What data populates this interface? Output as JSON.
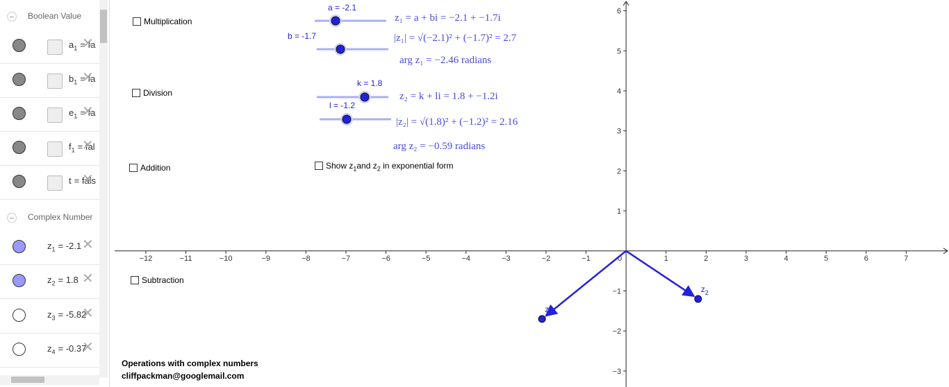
{
  "algebra_view": {
    "groups": [
      {
        "title": "Boolean Value",
        "items": [
          {
            "name": "a",
            "sub": "1",
            "value": "= fa"
          },
          {
            "name": "b",
            "sub": "1",
            "value": "= fa"
          },
          {
            "name": "e",
            "sub": "1",
            "value": "= fa"
          },
          {
            "name": "f",
            "sub": "1",
            "value": "= fal"
          },
          {
            "name": "t",
            "value": "= fals"
          }
        ]
      },
      {
        "title": "Complex Number",
        "items": [
          {
            "name": "z",
            "sub": "1",
            "value": "= -2.1",
            "color": "#9999ff"
          },
          {
            "name": "z",
            "sub": "2",
            "value": "= 1.8",
            "color": "#9999ff"
          },
          {
            "name": "z",
            "sub": "3",
            "value": "= -5.82",
            "color": "#ffffff"
          },
          {
            "name": "z",
            "sub": "4",
            "value": "= -0.37",
            "color": "#ffffff"
          }
        ]
      }
    ]
  },
  "checkboxes": [
    "Multiplication",
    "Division",
    "Addition",
    "Subtraction"
  ],
  "exponential_checkbox": {
    "text1": "Show z",
    "sub1": "1",
    "text2": "and z",
    "sub2": "2",
    "text3": " in exponential form"
  },
  "sliders": [
    "a = -2.1",
    "b = -1.7",
    "k = 1.8",
    "l = -1.2"
  ],
  "formulas": [
    "z₁ = a + bi = −2.1 + −1.7i",
    "|z₁| = √(−2.1)² + (−1.7)² = 2.7",
    "arg z₁ = −2.46 radians",
    "z₂ = k + li = 1.8 + −1.2i",
    "|z₂| = √(1.8)² + (−1.2)² = 2.16",
    "arg z₂ = −0.59 radians"
  ],
  "graphics": {
    "xlim": [
      -12.78,
      8.07
    ],
    "ylim": [
      -3.4,
      6.27
    ],
    "xticks": [
      {
        "value": -12,
        "label": "−12"
      },
      {
        "value": -11,
        "label": "−11"
      },
      {
        "value": -10,
        "label": "−10"
      },
      {
        "value": -9,
        "label": "−9"
      },
      {
        "value": -8,
        "label": "−8"
      },
      {
        "value": -7,
        "label": "−7"
      },
      {
        "value": -6,
        "label": "−6"
      },
      {
        "value": -5,
        "label": "−5"
      },
      {
        "value": -4,
        "label": "−4"
      },
      {
        "value": -3,
        "label": "−3"
      },
      {
        "value": -2,
        "label": "−2"
      },
      {
        "value": -1,
        "label": "−1"
      },
      0,
      1,
      2,
      3,
      4,
      5,
      6,
      7
    ],
    "yticks": [
      {
        "value": -3,
        "label": "−3"
      },
      {
        "value": -2,
        "label": "−2"
      },
      {
        "value": -1,
        "label": "−1"
      },
      1,
      2,
      3,
      4,
      5,
      6
    ],
    "color": "#2222dd",
    "points": [
      {
        "label": "z",
        "sub": "1",
        "x": -2.1,
        "y": -1.7
      },
      {
        "label": "z",
        "sub": "2",
        "x": 1.8,
        "y": -1.2
      }
    ]
  },
  "footer": {
    "title": "Operations with complex numbers",
    "author": "cliffpackman@googlemail.com"
  }
}
